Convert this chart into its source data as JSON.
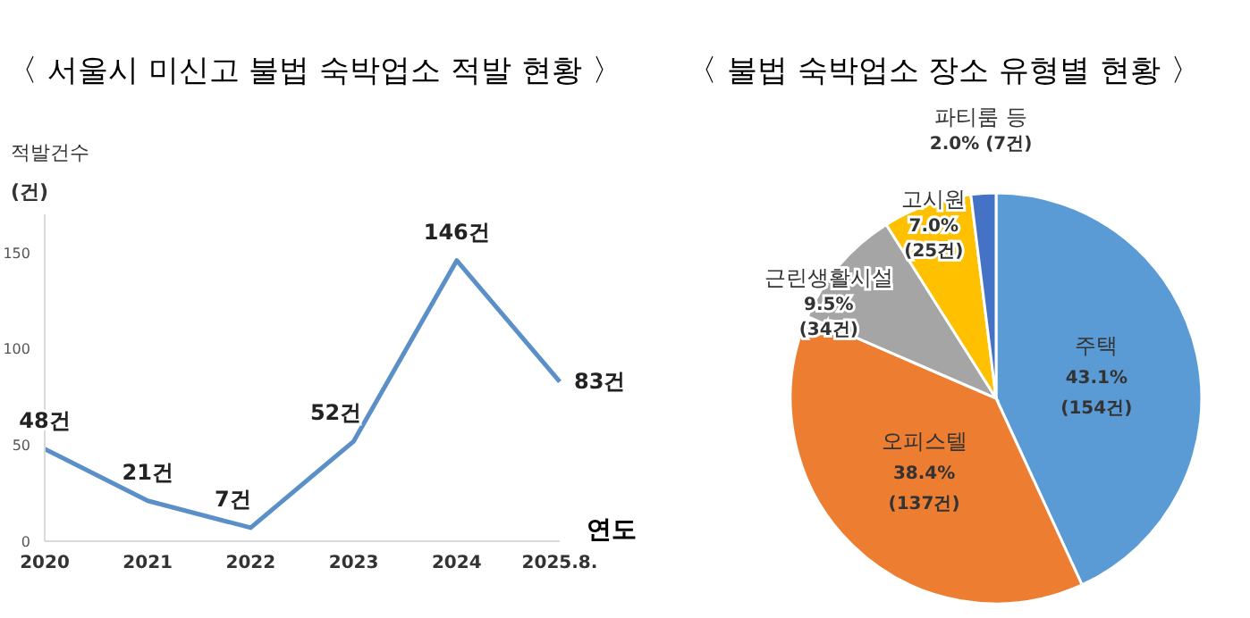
{
  "chart_data": [
    {
      "type": "line",
      "title": "〈 서울시 미신고 불법 숙박업소 적발 현황 〉",
      "ylabel": "적발건수\n(건)",
      "xlabel": "연도",
      "categories": [
        "2020",
        "2021",
        "2022",
        "2023",
        "2024",
        "2025.8."
      ],
      "series": [
        {
          "color": "#5b8fc7",
          "values": [
            48,
            21,
            7,
            52,
            146,
            83
          ],
          "value_labels": [
            "48건",
            "21건",
            "7건",
            "52건",
            "146건",
            "83건"
          ]
        }
      ],
      "ylim": [
        0,
        170
      ],
      "yticks": [
        0,
        50,
        100,
        150
      ],
      "marker": "none",
      "line_style": "solid"
    },
    {
      "type": "pie",
      "title": "〈 불법 숙박업소 장소 유형별 현황 〉",
      "categories": [
        "주택",
        "오피스텔",
        "근린생활시설",
        "고시원",
        "파티룸 등"
      ],
      "values": [
        154,
        137,
        34,
        25,
        7
      ],
      "colors": [
        "#5b9bd5",
        "#ed7d31",
        "#a5a5a5",
        "#ffc000",
        "#4472c4"
      ],
      "value_labels": [
        "43.1%\n(154건)",
        "38.4%\n(137건)",
        "9.5%\n(34건)",
        "7.0%\n(25건)",
        "2.0% (7건)"
      ]
    }
  ]
}
